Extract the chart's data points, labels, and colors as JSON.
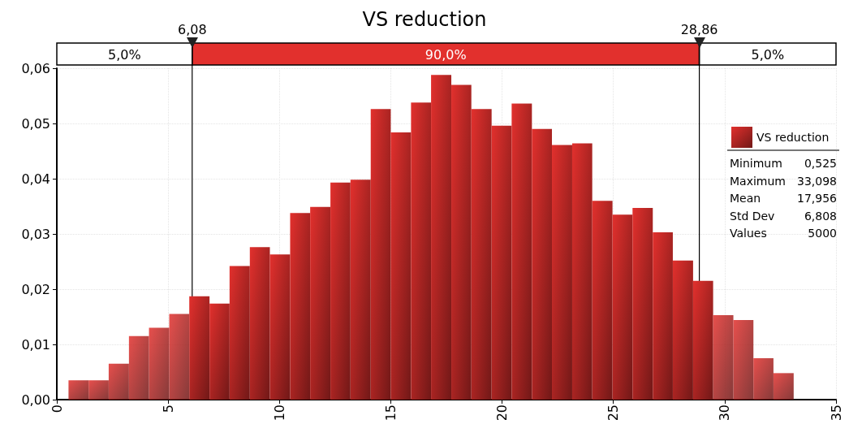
{
  "chart_data": {
    "type": "histogram",
    "title": "VS reduction",
    "bins": [
      0.525,
      1.43,
      2.33,
      3.24,
      4.14,
      5.05,
      5.95,
      6.86,
      7.76,
      8.67,
      9.57,
      10.48,
      11.38,
      12.29,
      13.19,
      14.1,
      15.0,
      15.91,
      16.81,
      17.72,
      18.62,
      19.53,
      20.43,
      21.34,
      22.24,
      23.15,
      24.05,
      24.96,
      25.86,
      26.77,
      27.67,
      28.58,
      29.48,
      30.39,
      31.29,
      32.19,
      33.098
    ],
    "series": [
      {
        "name": "VS reduction",
        "color": "#e2302d",
        "values": [
          0.0035,
          0.0035,
          0.0065,
          0.0115,
          0.013,
          0.0155,
          0.0187,
          0.0174,
          0.0242,
          0.0276,
          0.0263,
          0.0338,
          0.0349,
          0.0393,
          0.0398,
          0.0526,
          0.0484,
          0.0538,
          0.0588,
          0.057,
          0.0526,
          0.0496,
          0.0536,
          0.049,
          0.0461,
          0.0464,
          0.036,
          0.0335,
          0.0347,
          0.0303,
          0.0252,
          0.0215,
          0.0153,
          0.0144,
          0.0075,
          0.0048
        ]
      }
    ],
    "xlim": [
      0,
      35
    ],
    "xticks": [
      0,
      5,
      10,
      15,
      20,
      25,
      30,
      35
    ],
    "ylim": [
      0,
      0.06
    ],
    "yticks": [
      {
        "value": 0,
        "label": "0,00"
      },
      {
        "value": 0.01,
        "label": "0,01"
      },
      {
        "value": 0.02,
        "label": "0,02"
      },
      {
        "value": 0.03,
        "label": "0,03"
      },
      {
        "value": 0.04,
        "label": "0,04"
      },
      {
        "value": 0.05,
        "label": "0,05"
      },
      {
        "value": 0.06,
        "label": "0,06"
      }
    ],
    "ref_lines": [
      {
        "axis": "x",
        "value": 6.08,
        "label": "6,08"
      },
      {
        "axis": "x",
        "value": 28.86,
        "label": "28,86"
      }
    ],
    "annotations": [
      "5,0%",
      "90,0%",
      "5,0%",
      "Minimum",
      "0,525",
      "Maximum",
      "33,098",
      "Mean",
      "17,956",
      "Std Dev",
      "6,808",
      "Values",
      "5000"
    ],
    "legend": "right",
    "grid": true
  }
}
